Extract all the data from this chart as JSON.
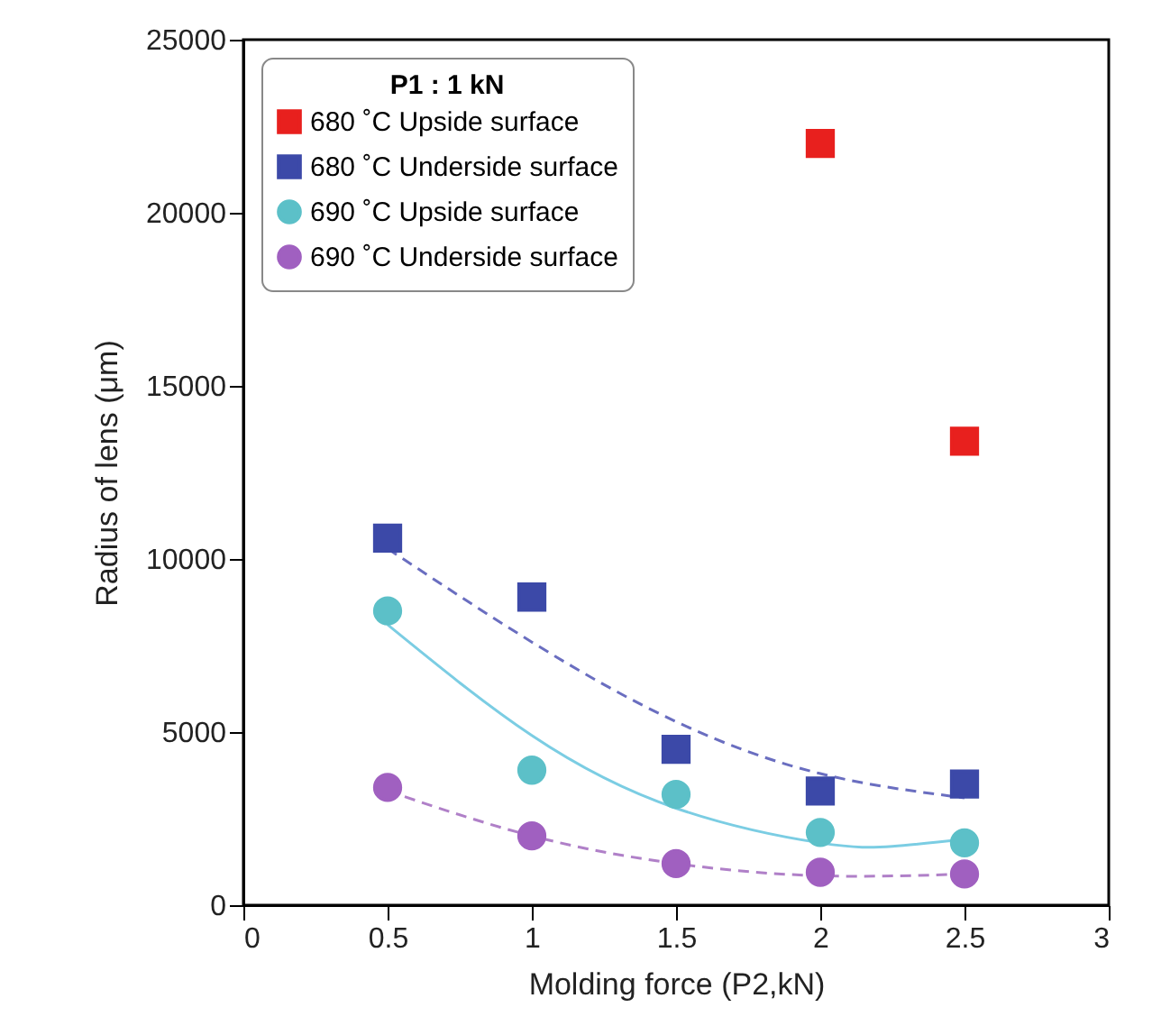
{
  "chart_data": {
    "type": "scatter",
    "xlabel": "Molding force (P2,kN)",
    "ylabel": "Radius of lens (μm)",
    "legend_title": "P1 : 1 kN",
    "xlim": [
      0,
      3
    ],
    "xticks": [
      0,
      0.5,
      1,
      1.5,
      2,
      2.5,
      3
    ],
    "ylim": [
      0,
      25000
    ],
    "yticks": [
      0,
      5000,
      10000,
      15000,
      20000,
      25000
    ],
    "grid": false,
    "legend": "top left",
    "x": [
      0.5,
      1,
      1.5,
      2,
      2.5
    ],
    "series": [
      {
        "name": "680 ˚C Upside surface",
        "color": "#e8201e",
        "marker": "square",
        "x": [
          2,
          2.5
        ],
        "values": [
          22000,
          13400
        ]
      },
      {
        "name": "680 ˚C Underside surface",
        "color": "#3c49a8",
        "marker": "square",
        "values": [
          10600,
          8900,
          4500,
          3300,
          3500
        ]
      },
      {
        "name": "690 ˚C Upside surface",
        "color": "#5cc0c8",
        "marker": "circle",
        "values": [
          8500,
          3900,
          3200,
          2100,
          1800
        ]
      },
      {
        "name": "690 ˚C Underside surface",
        "color": "#a060c0",
        "marker": "circle",
        "values": [
          3400,
          2000,
          1200,
          950,
          900
        ]
      },
      {
        "type": "line",
        "color": "#6a6ec0",
        "line_style": "dashed",
        "marker": "none",
        "x": [
          0.5,
          1,
          1.5,
          2,
          2.5
        ],
        "values": [
          10300,
          7600,
          5300,
          3800,
          3100
        ]
      },
      {
        "type": "line",
        "color": "#7bcde3",
        "line_style": "solid",
        "marker": "none",
        "x": [
          0.5,
          1,
          1.5,
          2,
          2.25,
          2.5
        ],
        "values": [
          8100,
          4900,
          2800,
          1800,
          1700,
          1900
        ]
      },
      {
        "type": "line",
        "color": "#b080c8",
        "line_style": "dashed",
        "marker": "none",
        "x": [
          0.5,
          1,
          1.5,
          2,
          2.5
        ],
        "values": [
          3300,
          2000,
          1200,
          850,
          900
        ]
      }
    ]
  }
}
